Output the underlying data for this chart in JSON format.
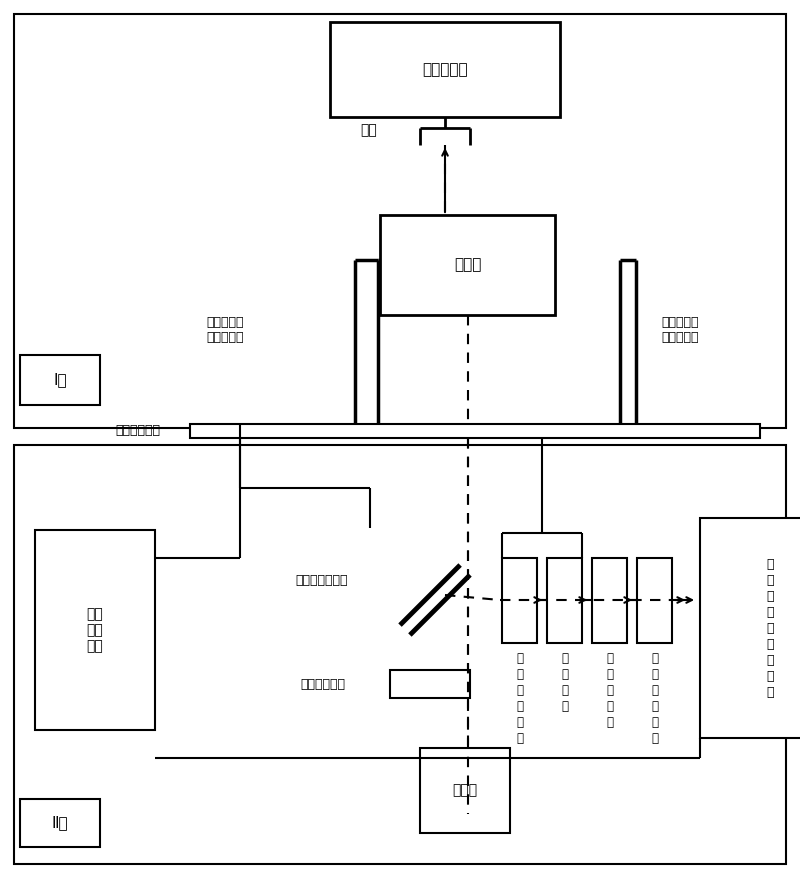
{
  "bg_color": "#ffffff",
  "lc": "#000000",
  "fig_width": 8.0,
  "fig_height": 8.84,
  "labels": {
    "sample_operator": "样品操作器",
    "sample": "样品",
    "ferromagnet": "铁磁体",
    "left_rod": "铁磁体位置\n移动操作杆",
    "right_rod": "铁磁体方向\n反转操作杆",
    "substrate": "衬底观察窗口",
    "zone1": "Ⅰ区",
    "zone2": "Ⅱ区",
    "stepper": "步进\n控制\n马达",
    "beamsplitter": "半透半反分光器",
    "pol_rotator": "光偏振旋转器",
    "laser": "激光器",
    "pem": "光\n弹\n性\n调\n制\n器",
    "analyzer": "光\n偏\n振\n器",
    "photodet": "光\n电\n探\n测\n器",
    "lockin": "锁\n相\n放\n大\n系\n统",
    "computer": "计\n算\n机\n分\n析\n处\n理\n系\n统"
  }
}
